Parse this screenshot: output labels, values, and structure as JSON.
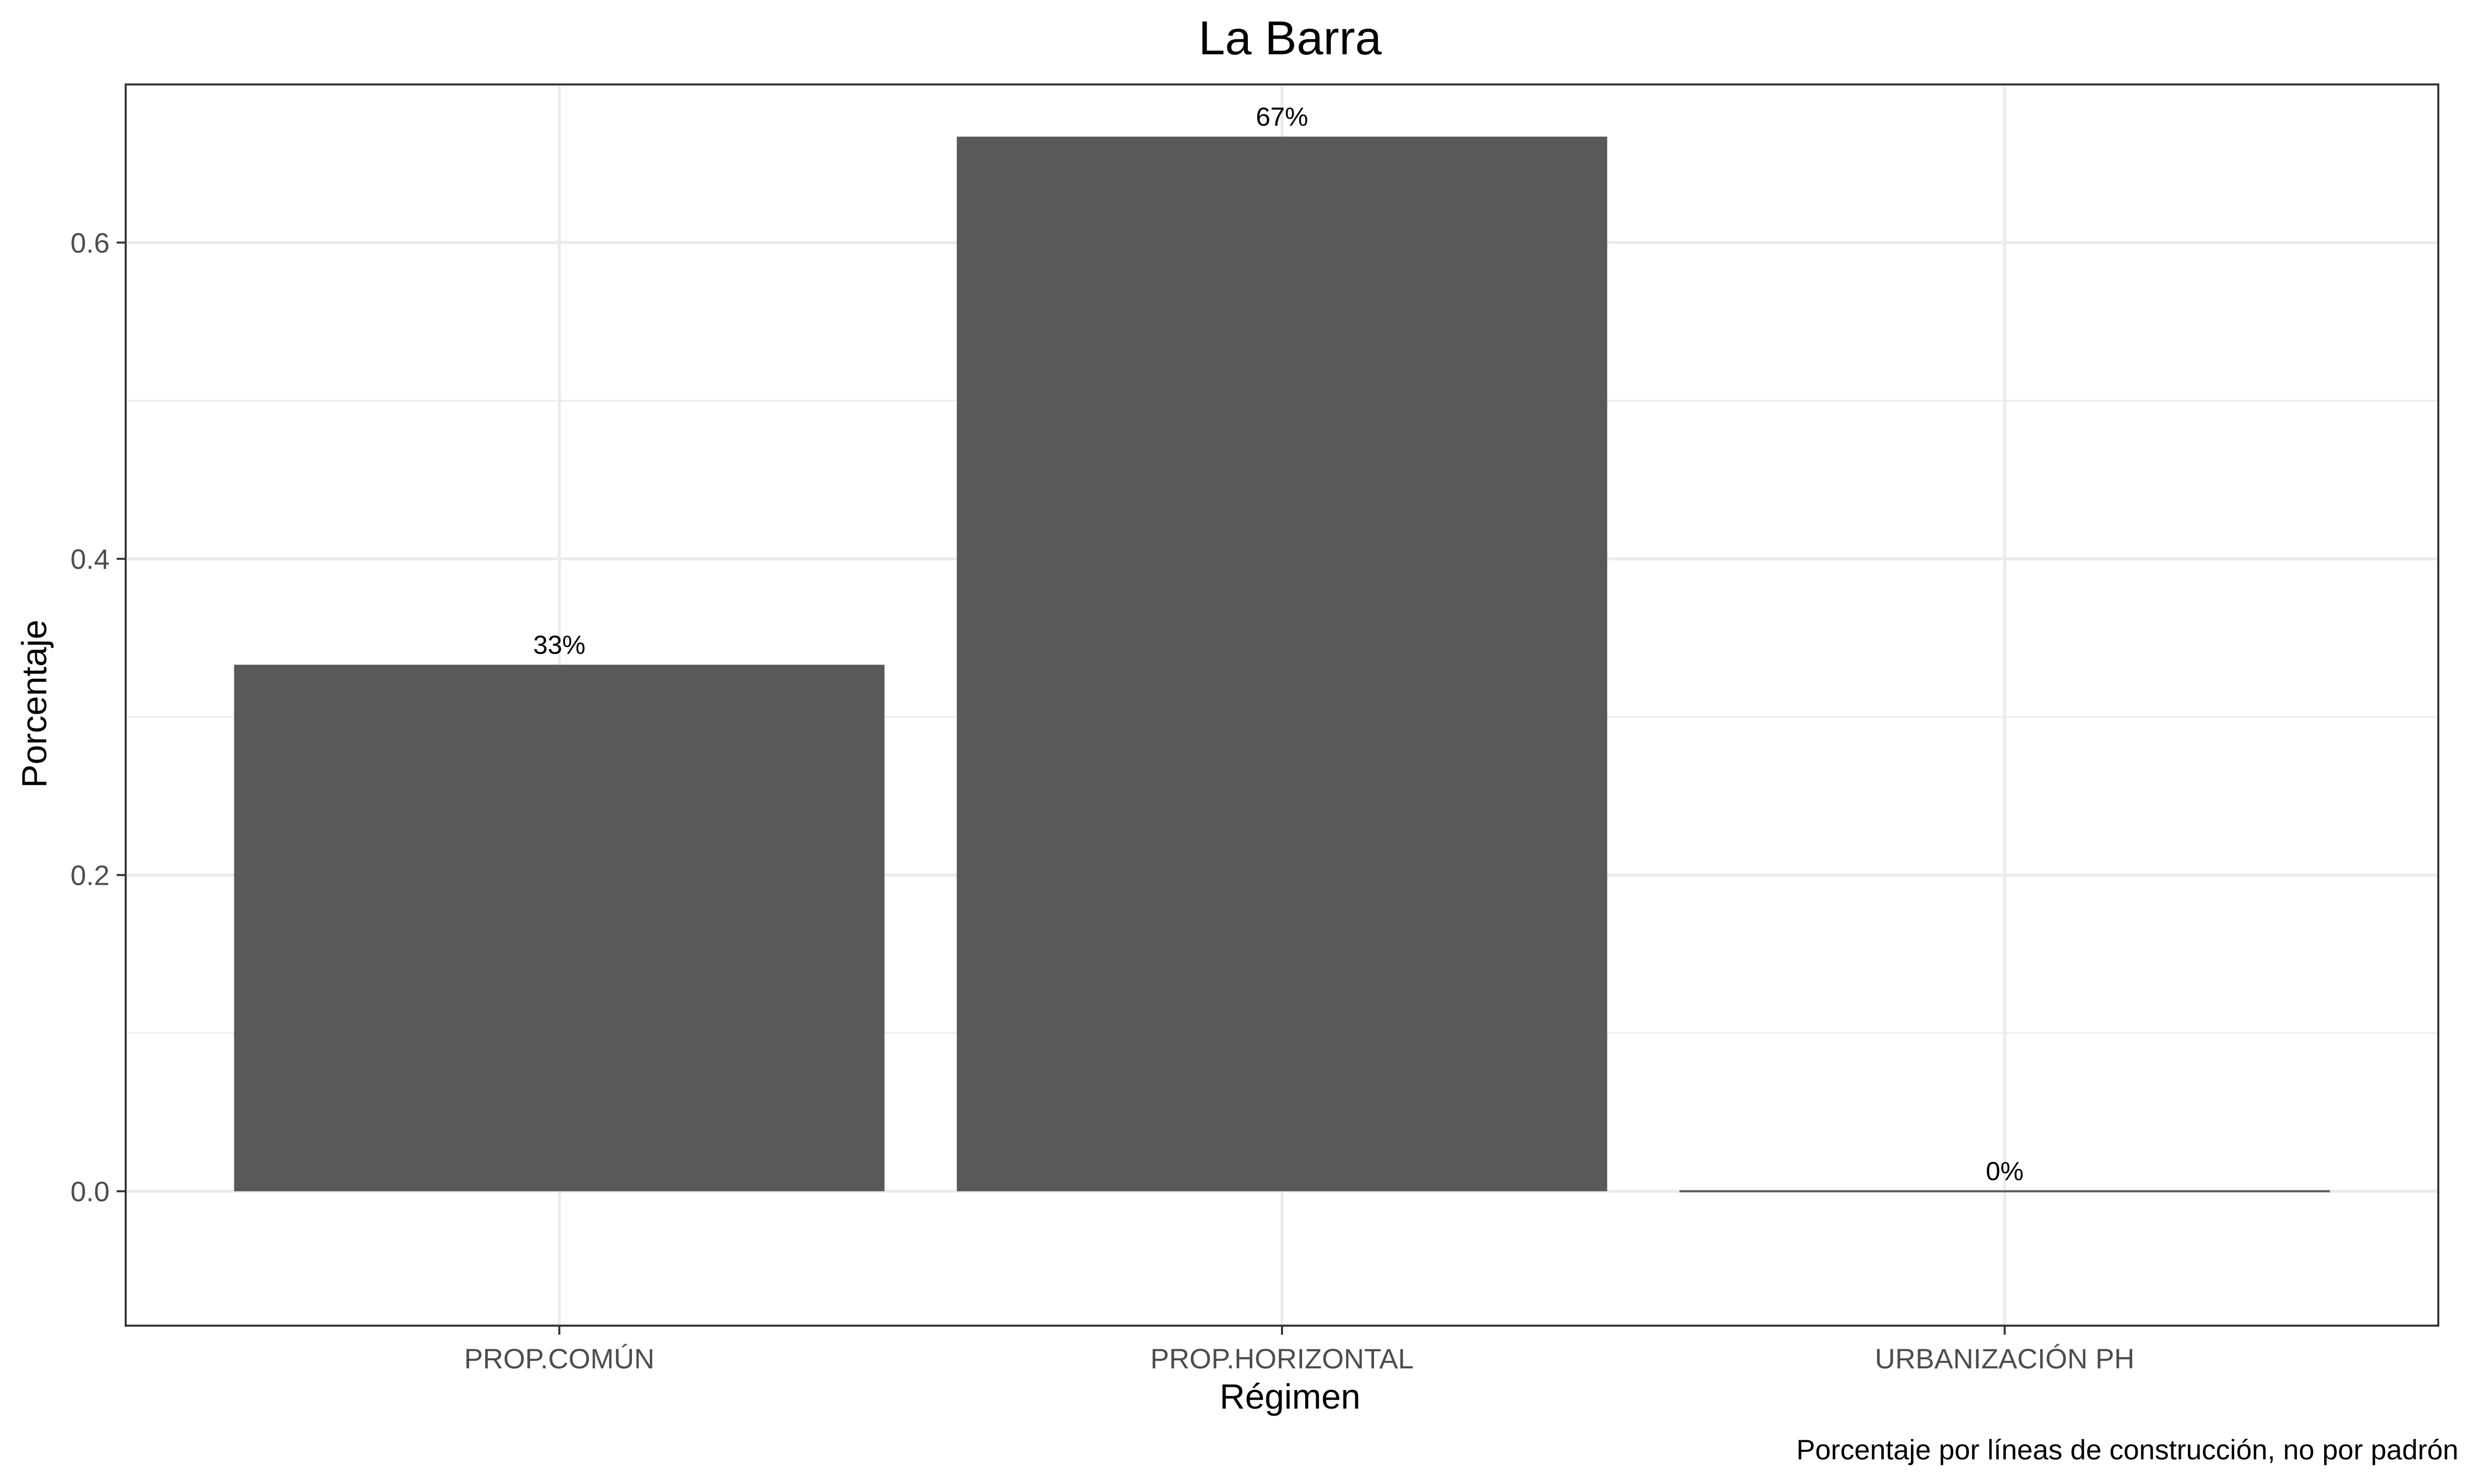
{
  "chart_data": {
    "type": "bar",
    "title": "La Barra",
    "xlabel": "Régimen",
    "ylabel": "Porcentaje",
    "caption": "Porcentaje por líneas de construcción, no por padrón",
    "categories": [
      "PROP.COMÚN",
      "PROP.HORIZONTAL",
      "URBANIZACIÓN PH"
    ],
    "values": [
      0.333,
      0.667,
      0.0
    ],
    "data_labels": [
      "33%",
      "67%",
      "0%"
    ],
    "ylim": [
      -0.085,
      0.7
    ],
    "yticks": [
      0.0,
      0.2,
      0.4,
      0.6
    ],
    "ytick_labels": [
      "0.0",
      "0.2",
      "0.4",
      "0.6"
    ],
    "grid": true,
    "legend": "none",
    "colors": {
      "bar": "#595959",
      "grid": "#ebebeb",
      "panel_border": "#333333",
      "tick_text": "#4d4d4d",
      "background": "#ffffff"
    }
  }
}
